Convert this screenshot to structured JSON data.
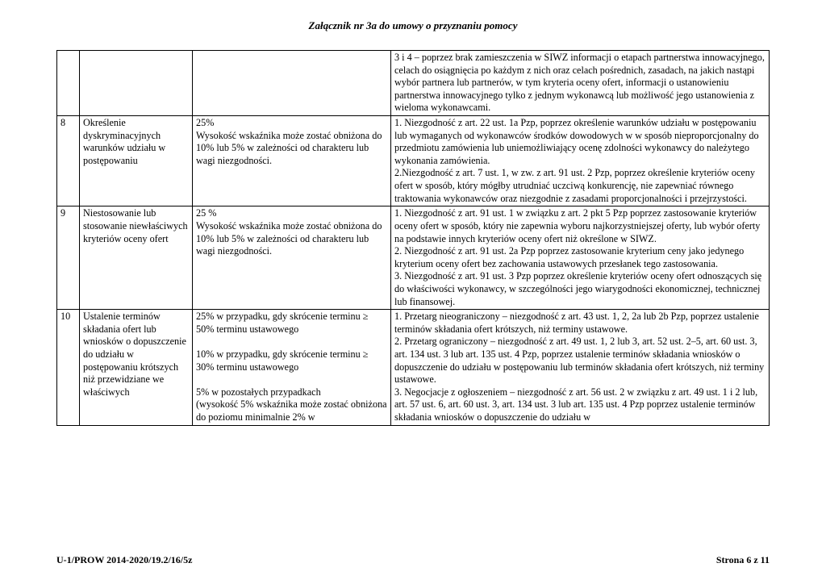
{
  "header": {
    "title": "Załącznik nr 3a do umowy o przyznaniu pomocy"
  },
  "table": {
    "rows": [
      {
        "num": "",
        "name": "",
        "rate": "",
        "desc": "3 i 4 – poprzez brak zamieszczenia w SIWZ informacji o etapach partnerstwa innowacyjnego, celach do osiągnięcia po każdym z nich oraz celach pośrednich, zasadach, na jakich nastąpi wybór partnera lub partnerów, w tym kryteria oceny ofert, informacji o ustanowieniu partnerstwa innowacyjnego tylko z jednym wykonawcą lub możliwość jego ustanowienia z wieloma wykonawcami."
      },
      {
        "num": "8",
        "name": "Określenie dyskryminacyjnych warunków udziału w postępowaniu",
        "rate": "25%\nWysokość wskaźnika może zostać obniżona do 10% lub 5% w zależności od charakteru lub wagi niezgodności.",
        "desc": "1. Niezgodność z art. 22 ust. 1a Pzp, poprzez określenie warunków udziału w postępowaniu lub wymaganych od wykonawców środków dowodowych w w sposób nieproporcjonalny do przedmiotu zamówienia lub uniemożliwiający ocenę zdolności wykonawcy do należytego wykonania zamówienia.\n2.Niezgodność z art. 7 ust. 1, w zw. z art. 91 ust. 2 Pzp, poprzez określenie kryteriów oceny ofert w sposób, który mógłby utrudniać uczciwą konkurencję, nie zapewniać równego traktowania wykonawców oraz niezgodnie z zasadami proporcjonalności i przejrzystości."
      },
      {
        "num": "9",
        "name": "Niestosowanie lub stosowanie niewłaściwych kryteriów oceny ofert",
        "rate": "25 %\nWysokość wskaźnika może zostać obniżona do 10% lub 5% w zależności od charakteru lub wagi niezgodności.",
        "desc": "1. Niezgodność z art. 91 ust. 1 w związku z art. 2 pkt 5 Pzp poprzez zastosowanie kryteriów oceny ofert w sposób, który nie zapewnia wyboru najkorzystniejszej oferty, lub wybór oferty na podstawie innych kryteriów oceny ofert niż określone w SIWZ.\n2. Niezgodność z art. 91 ust. 2a Pzp poprzez zastosowanie kryterium ceny jako jedynego kryterium oceny ofert bez zachowania ustawowych przesłanek tego zastosowania.\n3. Niezgodność z art. 91 ust. 3 Pzp poprzez określenie kryteriów oceny ofert odnoszących się do właściwości wykonawcy, w szczególności jego wiarygodności ekonomicznej, technicznej lub finansowej."
      },
      {
        "num": "10",
        "name": "Ustalenie terminów składania ofert lub wniosków o dopuszczenie do udziału w postępowaniu krótszych niż przewidziane we właściwych",
        "rate": "25% w przypadku, gdy skrócenie terminu ≥ 50% terminu ustawowego\n\n10% w przypadku, gdy skrócenie terminu ≥ 30% terminu ustawowego\n\n5% w pozostałych przypadkach\n(wysokość 5% wskaźnika może zostać obniżona do poziomu minimalnie 2%  w",
        "desc": "1. Przetarg nieograniczony – niezgodność z art. 43 ust. 1, 2, 2a lub 2b Pzp, poprzez ustalenie terminów składania ofert krótszych, niż terminy ustawowe.\n2. Przetarg ograniczony – niezgodność z art. 49 ust. 1,  2 lub 3, art. 52 ust. 2–5, art. 60 ust. 3, art. 134 ust. 3 lub art. 135 ust. 4 Pzp, poprzez ustalenie terminów składania wniosków o dopuszczenie do udziału w postępowaniu lub terminów składania ofert krótszych, niż terminy ustawowe.\n3. Negocjacje z ogłoszeniem – niezgodność z art. 56 ust. 2 w związku z art. 49 ust. 1 i 2 lub, art. 57 ust. 6, art. 60 ust. 3, art. 134 ust. 3 lub art. 135 ust. 4  Pzp poprzez ustalenie terminów składania wniosków o dopuszczenie do udziału w"
      }
    ]
  },
  "footer": {
    "left": "U-1/PROW 2014-2020/19.2/16/5z",
    "right": "Strona 6 z 11"
  }
}
